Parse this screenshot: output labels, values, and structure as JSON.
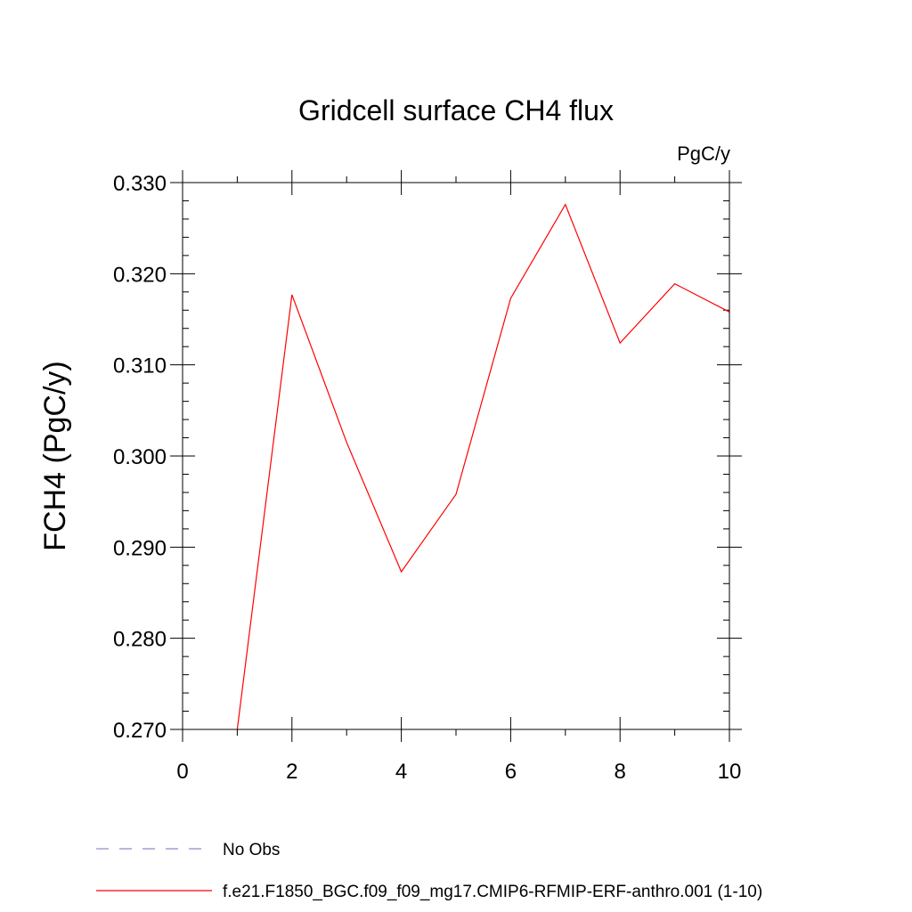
{
  "chart_data": {
    "type": "line",
    "title": "Gridcell surface CH4 flux",
    "units_label": "PgC/y",
    "ylabel": "FCH4  (PgC/y)",
    "xlabel": "",
    "xlim": [
      0,
      10
    ],
    "ylim": [
      0.27,
      0.33
    ],
    "x_ticks": [
      0,
      2,
      4,
      6,
      8,
      10
    ],
    "x_tick_labels": [
      "0",
      "2",
      "4",
      "6",
      "8",
      "10"
    ],
    "y_ticks": [
      0.27,
      0.28,
      0.29,
      0.3,
      0.31,
      0.32,
      0.33
    ],
    "y_tick_labels": [
      "0.270",
      "0.280",
      "0.290",
      "0.300",
      "0.310",
      "0.320",
      "0.330"
    ],
    "grid": false,
    "legend_position": "bottom-left",
    "series": [
      {
        "name": "f.e21.F1850_BGC.f09_f09_mg17.CMIP6-RFMIP-ERF-anthro.001 (1-10)",
        "color": "#ff0000",
        "style": "solid",
        "x": [
          1,
          2,
          3,
          4,
          5,
          6,
          7,
          8,
          9,
          10
        ],
        "y": [
          0.27,
          0.3177,
          0.3015,
          0.2873,
          0.2958,
          0.3173,
          0.3276,
          0.3124,
          0.3189,
          0.3158
        ]
      }
    ],
    "legend": [
      {
        "label": "No Obs",
        "color": "#8c8cc8",
        "style": "dashed"
      },
      {
        "label": "f.e21.F1850_BGC.f09_f09_mg17.CMIP6-RFMIP-ERF-anthro.001 (1-10)",
        "color": "#ff0000",
        "style": "solid"
      }
    ]
  }
}
